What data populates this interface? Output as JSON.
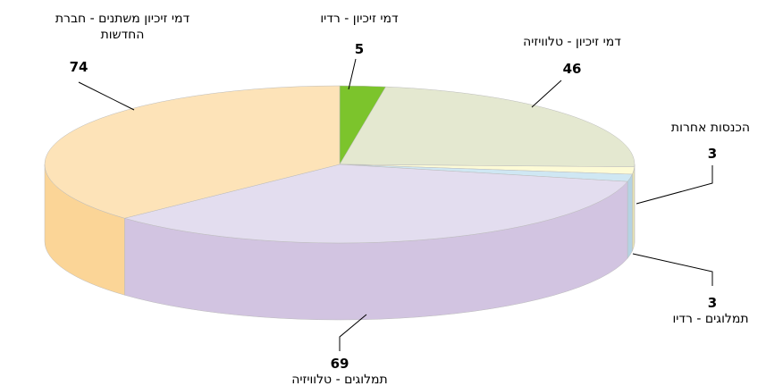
{
  "chart_data": {
    "type": "pie3d",
    "categories": [
      "דמי זיכיון - רדיו",
      "דמי זיכיון - טלוויזיה",
      "הכנסות אחרות",
      "תמלוגים - רדיו",
      "תמלוגים - טלוויזיה",
      "דמי זיכיון משתנים - חברת החדשות"
    ],
    "values": [
      5,
      46,
      3,
      3,
      69,
      74
    ],
    "colors": [
      "#7cc42c",
      "#e4e8d0",
      "#fdfbd6",
      "#cfe7f3",
      "#e3ddef",
      "#fde3b8"
    ],
    "side_colors": [
      "#5ea21a",
      "#c9ceb0",
      "#e8e4b4",
      "#b5d3e3",
      "#d2c4e1",
      "#fbd597"
    ]
  }
}
